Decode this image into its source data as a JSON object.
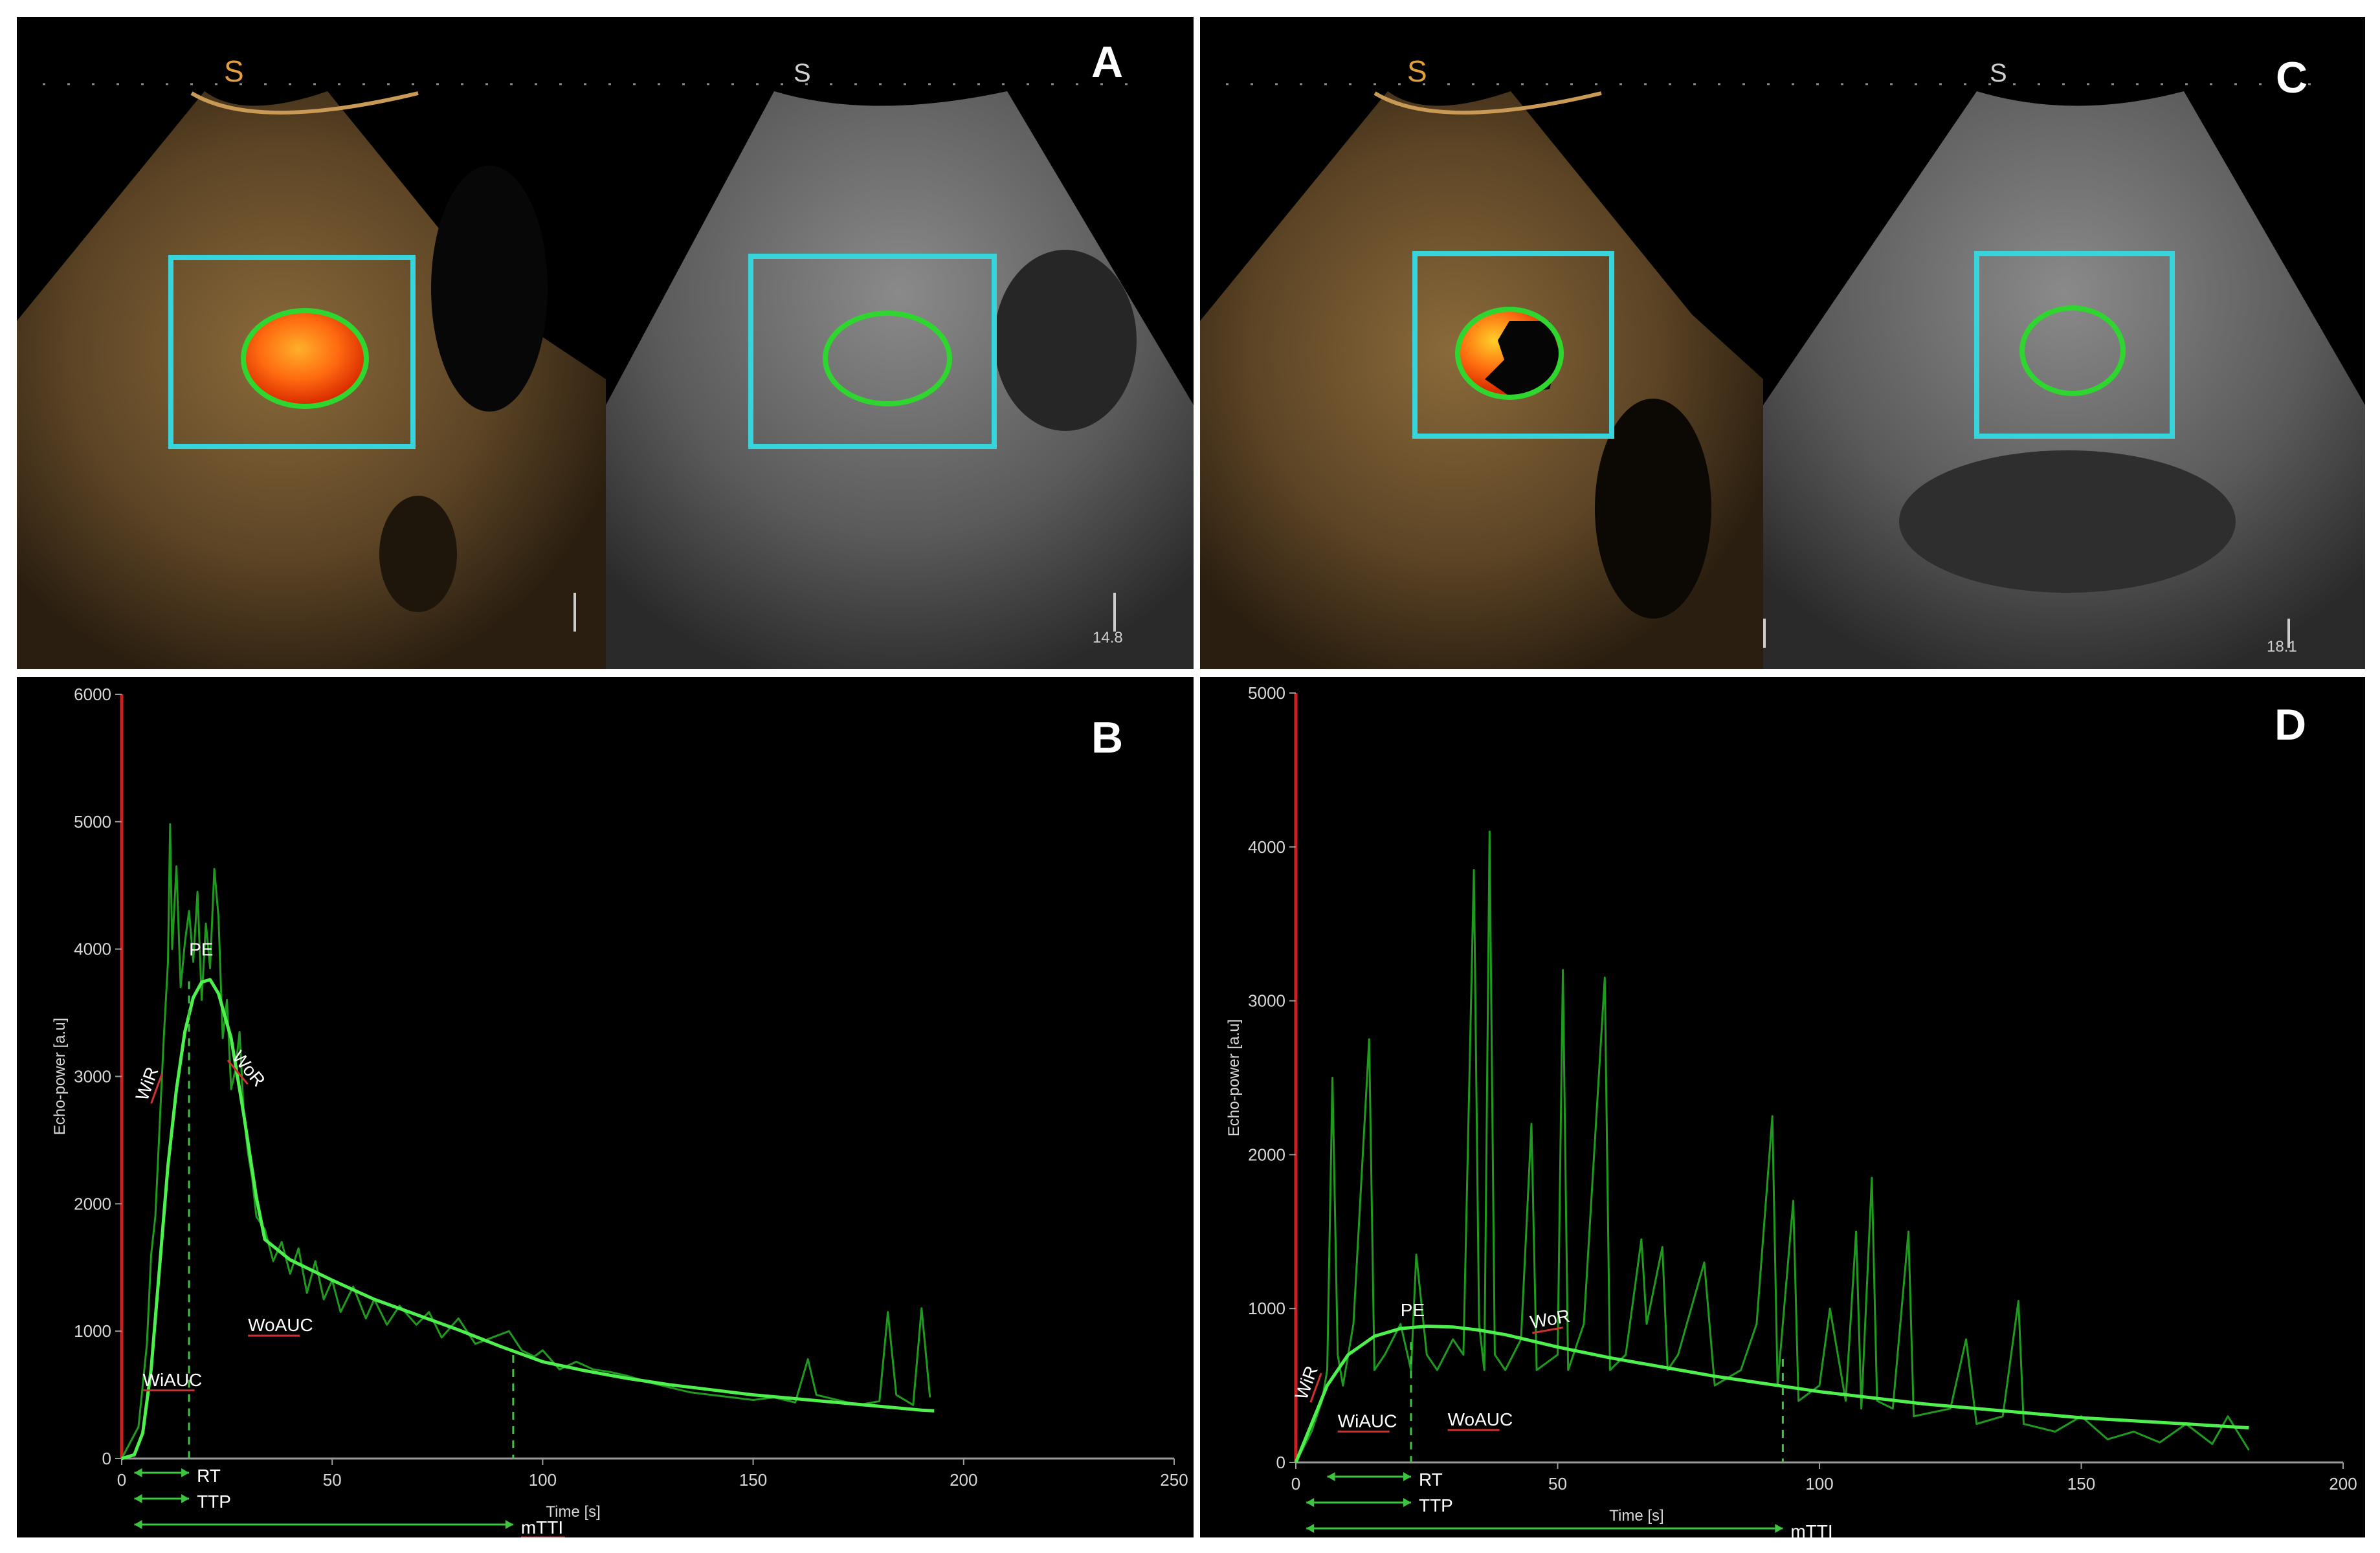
{
  "figure": {
    "panel_A": {
      "label": "A",
      "depth_readout": "14.8"
    },
    "panel_B": {
      "label": "B"
    },
    "panel_C": {
      "label": "C",
      "depth_readout": "18.1"
    },
    "panel_D": {
      "label": "D"
    }
  },
  "colors": {
    "roi_box": "#37d4dc",
    "roi_ellipse": "#2fd62f",
    "raw_signal": "#1f9a1f",
    "fit_curve": "#4ef04e",
    "y_axis": "#cc2020",
    "annotation_guides": "#3fc43f",
    "annotation_underline": "#d03030"
  },
  "chart_data": [
    {
      "panel": "B",
      "type": "line",
      "xlabel": "Time [s]",
      "ylabel": "Echo-power [a.u]",
      "xlim": [
        0,
        250
      ],
      "ylim": [
        0,
        6000
      ],
      "x_ticks": [
        "0",
        "50",
        "100",
        "150",
        "200",
        "250"
      ],
      "y_ticks": [
        "0",
        "1000",
        "2000",
        "3000",
        "4000",
        "5000",
        "6000"
      ],
      "series": [
        {
          "role": "fitted",
          "points": [
            [
              0,
              0
            ],
            [
              3,
              30
            ],
            [
              5,
              200
            ],
            [
              7,
              700
            ],
            [
              9,
              1500
            ],
            [
              11,
              2300
            ],
            [
              13,
              2900
            ],
            [
              15,
              3350
            ],
            [
              17,
              3620
            ],
            [
              19,
              3740
            ],
            [
              21,
              3760
            ],
            [
              23,
              3650
            ],
            [
              26,
              3300
            ],
            [
              29,
              2700
            ],
            [
              32,
              2050
            ],
            [
              34,
              1720
            ],
            [
              40,
              1560
            ],
            [
              50,
              1400
            ],
            [
              60,
              1250
            ],
            [
              70,
              1130
            ],
            [
              80,
              1010
            ],
            [
              90,
              880
            ],
            [
              100,
              760
            ],
            [
              110,
              690
            ],
            [
              120,
              630
            ],
            [
              130,
              580
            ],
            [
              140,
              540
            ],
            [
              150,
              500
            ],
            [
              160,
              470
            ],
            [
              170,
              440
            ],
            [
              180,
              410
            ],
            [
              190,
              380
            ],
            [
              193,
              375
            ]
          ]
        },
        {
          "role": "raw",
          "points": [
            [
              0,
              0
            ],
            [
              4,
              250
            ],
            [
              6,
              900
            ],
            [
              7,
              1600
            ],
            [
              8,
              1900
            ],
            [
              9,
              2600
            ],
            [
              10,
              3300
            ],
            [
              11,
              3900
            ],
            [
              11.5,
              4980
            ],
            [
              12,
              4000
            ],
            [
              13,
              4650
            ],
            [
              14,
              3700
            ],
            [
              15,
              4050
            ],
            [
              16,
              4300
            ],
            [
              17,
              3900
            ],
            [
              18,
              4450
            ],
            [
              19,
              3600
            ],
            [
              20,
              4200
            ],
            [
              21,
              3850
            ],
            [
              22,
              4630
            ],
            [
              23,
              4250
            ],
            [
              24,
              3300
            ],
            [
              25,
              3600
            ],
            [
              26,
              2900
            ],
            [
              27,
              3050
            ],
            [
              28,
              3350
            ],
            [
              29,
              2700
            ],
            [
              30,
              2400
            ],
            [
              31,
              2200
            ],
            [
              32,
              1900
            ],
            [
              34,
              1800
            ],
            [
              36,
              1550
            ],
            [
              38,
              1700
            ],
            [
              40,
              1450
            ],
            [
              42,
              1650
            ],
            [
              44,
              1300
            ],
            [
              46,
              1550
            ],
            [
              48,
              1250
            ],
            [
              50,
              1400
            ],
            [
              52,
              1150
            ],
            [
              55,
              1350
            ],
            [
              58,
              1100
            ],
            [
              60,
              1250
            ],
            [
              63,
              1050
            ],
            [
              66,
              1200
            ],
            [
              70,
              1050
            ],
            [
              73,
              1150
            ],
            [
              76,
              950
            ],
            [
              80,
              1100
            ],
            [
              84,
              900
            ],
            [
              88,
              950
            ],
            [
              92,
              1000
            ],
            [
              95,
              850
            ],
            [
              98,
              800
            ],
            [
              100,
              850
            ],
            [
              104,
              700
            ],
            [
              108,
              760
            ],
            [
              112,
              700
            ],
            [
              116,
              680
            ],
            [
              120,
              650
            ],
            [
              125,
              600
            ],
            [
              130,
              560
            ],
            [
              135,
              520
            ],
            [
              140,
              500
            ],
            [
              145,
              480
            ],
            [
              150,
              460
            ],
            [
              155,
              480
            ],
            [
              160,
              440
            ],
            [
              163,
              780
            ],
            [
              165,
              500
            ],
            [
              170,
              460
            ],
            [
              175,
              420
            ],
            [
              180,
              450
            ],
            [
              182,
              1150
            ],
            [
              184,
              500
            ],
            [
              188,
              420
            ],
            [
              190,
              1180
            ],
            [
              192,
              480
            ]
          ]
        }
      ],
      "annotations": [
        {
          "text": "PE",
          "x": 16,
          "y": 3950
        },
        {
          "text": "WoR",
          "x": 26,
          "y": 3150
        },
        {
          "text": "WiR",
          "x": 6,
          "y": 2800
        },
        {
          "text": "WoAUC",
          "x": 30,
          "y": 1000
        },
        {
          "text": "WiAUC",
          "x": 5,
          "y": 570
        }
      ],
      "intervals": [
        {
          "text": "RT",
          "from": 3,
          "to": 16
        },
        {
          "text": "TTP",
          "from": 3,
          "to": 16
        },
        {
          "text": "mTTI",
          "from": 3,
          "to": 93
        }
      ]
    },
    {
      "panel": "D",
      "type": "line",
      "xlabel": "Time [s]",
      "ylabel": "Echo-power [a.u]",
      "xlim": [
        0,
        200
      ],
      "ylim": [
        0,
        5000
      ],
      "x_ticks": [
        "0",
        "50",
        "100",
        "150",
        "200"
      ],
      "y_ticks": [
        "0",
        "1000",
        "2000",
        "3000",
        "4000",
        "5000"
      ],
      "series": [
        {
          "role": "fitted",
          "points": [
            [
              0,
              0
            ],
            [
              3,
              250
            ],
            [
              6,
              500
            ],
            [
              10,
              700
            ],
            [
              15,
              820
            ],
            [
              20,
              870
            ],
            [
              25,
              885
            ],
            [
              30,
              880
            ],
            [
              35,
              860
            ],
            [
              40,
              830
            ],
            [
              45,
              790
            ],
            [
              50,
              750
            ],
            [
              60,
              680
            ],
            [
              70,
              620
            ],
            [
              80,
              560
            ],
            [
              90,
              510
            ],
            [
              100,
              460
            ],
            [
              110,
              420
            ],
            [
              120,
              380
            ],
            [
              130,
              350
            ],
            [
              140,
              320
            ],
            [
              150,
              290
            ],
            [
              160,
              270
            ],
            [
              170,
              250
            ],
            [
              182,
              225
            ]
          ]
        },
        {
          "role": "raw",
          "points": [
            [
              0,
              0
            ],
            [
              3,
              200
            ],
            [
              5,
              400
            ],
            [
              6,
              600
            ],
            [
              7,
              2500
            ],
            [
              8,
              700
            ],
            [
              9,
              500
            ],
            [
              11,
              900
            ],
            [
              14,
              2750
            ],
            [
              15,
              600
            ],
            [
              17,
              700
            ],
            [
              20,
              900
            ],
            [
              22,
              600
            ],
            [
              23,
              1350
            ],
            [
              25,
              700
            ],
            [
              27,
              600
            ],
            [
              30,
              800
            ],
            [
              32,
              700
            ],
            [
              34,
              3850
            ],
            [
              35,
              900
            ],
            [
              36,
              600
            ],
            [
              37,
              4100
            ],
            [
              38,
              700
            ],
            [
              40,
              600
            ],
            [
              43,
              800
            ],
            [
              45,
              2200
            ],
            [
              46,
              600
            ],
            [
              50,
              700
            ],
            [
              51,
              3200
            ],
            [
              52,
              600
            ],
            [
              55,
              900
            ],
            [
              59,
              3150
            ],
            [
              60,
              600
            ],
            [
              63,
              700
            ],
            [
              66,
              1450
            ],
            [
              67,
              900
            ],
            [
              70,
              1400
            ],
            [
              71,
              600
            ],
            [
              73,
              700
            ],
            [
              78,
              1300
            ],
            [
              80,
              500
            ],
            [
              85,
              600
            ],
            [
              88,
              900
            ],
            [
              91,
              2250
            ],
            [
              92,
              500
            ],
            [
              95,
              1700
            ],
            [
              96,
              400
            ],
            [
              100,
              500
            ],
            [
              102,
              1000
            ],
            [
              105,
              400
            ],
            [
              107,
              1500
            ],
            [
              108,
              350
            ],
            [
              110,
              1850
            ],
            [
              111,
              400
            ],
            [
              114,
              350
            ],
            [
              117,
              1500
            ],
            [
              118,
              300
            ],
            [
              125,
              350
            ],
            [
              128,
              800
            ],
            [
              130,
              250
            ],
            [
              135,
              300
            ],
            [
              138,
              1050
            ],
            [
              139,
              250
            ],
            [
              145,
              200
            ],
            [
              150,
              300
            ],
            [
              155,
              150
            ],
            [
              160,
              200
            ],
            [
              165,
              130
            ],
            [
              170,
              250
            ],
            [
              175,
              120
            ],
            [
              178,
              300
            ],
            [
              182,
              80
            ]
          ]
        }
      ],
      "annotations": [
        {
          "text": "PE",
          "x": 20,
          "y": 950
        },
        {
          "text": "WoR",
          "x": 45,
          "y": 870
        },
        {
          "text": "WiR",
          "x": 2,
          "y": 400
        },
        {
          "text": "WoAUC",
          "x": 29,
          "y": 240
        },
        {
          "text": "WiAUC",
          "x": 8,
          "y": 230
        }
      ],
      "intervals": [
        {
          "text": "RT",
          "from": 6,
          "to": 22
        },
        {
          "text": "TTP",
          "from": 2,
          "to": 22
        },
        {
          "text": "mTTI",
          "from": 2,
          "to": 93
        }
      ]
    }
  ]
}
